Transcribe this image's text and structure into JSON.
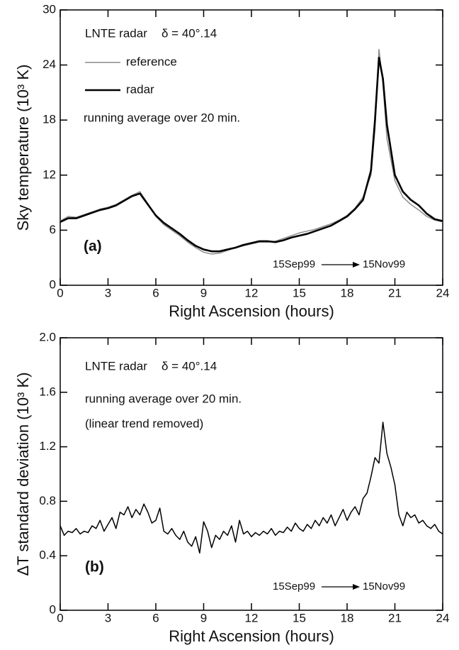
{
  "chart_data": [
    {
      "type": "line",
      "xlabel": "Right Ascension (hours)",
      "ylabel": "Sky temperature (10³ K)",
      "xlim": [
        0,
        24
      ],
      "xticks": [
        0,
        3,
        6,
        9,
        12,
        15,
        18,
        21,
        24
      ],
      "ylim": [
        0,
        30
      ],
      "yticks": [
        0,
        6,
        12,
        18,
        24,
        30
      ],
      "annotations": {
        "station": "LNTE radar",
        "declination": "δ = 40°.14",
        "note": "running average over 20 min.",
        "panel": "(a)",
        "start": "15Sep99",
        "end": "15Nov99"
      },
      "x": [
        0,
        0.5,
        1,
        1.5,
        2,
        2.5,
        3,
        3.5,
        4,
        4.5,
        5,
        5.5,
        6,
        6.5,
        7,
        7.5,
        8,
        8.5,
        9,
        9.5,
        10,
        10.5,
        11,
        11.5,
        12,
        12.5,
        13,
        13.5,
        14,
        14.5,
        15,
        15.5,
        16,
        16.5,
        17,
        17.5,
        18,
        18.5,
        19,
        19.5,
        19.75,
        20,
        20.25,
        20.5,
        21,
        21.5,
        22,
        22.5,
        23,
        23.5,
        24
      ],
      "series": [
        {
          "name": "reference",
          "color": "#8c8c8c",
          "width": 1.5,
          "values": [
            7.0,
            7.5,
            7.4,
            7.7,
            8.0,
            8.3,
            8.5,
            8.8,
            9.3,
            9.8,
            10.2,
            8.9,
            7.5,
            6.6,
            6.0,
            5.4,
            4.7,
            4.1,
            3.6,
            3.4,
            3.5,
            3.8,
            4.1,
            4.3,
            4.5,
            4.7,
            4.7,
            4.8,
            5.1,
            5.4,
            5.7,
            5.9,
            6.1,
            6.4,
            6.7,
            7.1,
            7.6,
            8.4,
            9.6,
            12.0,
            17.0,
            25.7,
            22.0,
            16.0,
            11.4,
            9.6,
            8.8,
            8.2,
            7.5,
            7.1,
            6.9
          ]
        },
        {
          "name": "radar",
          "color": "#000000",
          "width": 2.6,
          "values": [
            6.9,
            7.3,
            7.3,
            7.6,
            7.9,
            8.2,
            8.4,
            8.7,
            9.2,
            9.7,
            10.0,
            8.8,
            7.6,
            6.8,
            6.2,
            5.6,
            4.9,
            4.3,
            3.9,
            3.7,
            3.7,
            3.9,
            4.1,
            4.4,
            4.6,
            4.8,
            4.8,
            4.7,
            4.9,
            5.2,
            5.4,
            5.6,
            5.9,
            6.2,
            6.5,
            7.0,
            7.5,
            8.3,
            9.3,
            12.5,
            18.0,
            24.8,
            22.5,
            17.5,
            12.0,
            10.2,
            9.3,
            8.7,
            7.8,
            7.2,
            7.0
          ]
        }
      ]
    },
    {
      "type": "line",
      "xlabel": "Right Ascension (hours)",
      "ylabel": "ΔT  standard deviation (10³ K)",
      "xlim": [
        0,
        24
      ],
      "xticks": [
        0,
        3,
        6,
        9,
        12,
        15,
        18,
        21,
        24
      ],
      "ylim": [
        0,
        2
      ],
      "yticks": [
        0,
        0.4,
        0.8,
        1.2,
        1.6,
        {
          "value": 2,
          "label": "2.0"
        }
      ],
      "annotations": {
        "station": "LNTE radar",
        "declination": "δ = 40°.14",
        "note": "running average over 20 min.",
        "note2": "(linear trend removed)",
        "panel": "(b)",
        "start": "15Sep99",
        "end": "15Nov99"
      },
      "x": [
        0,
        0.25,
        0.5,
        0.75,
        1,
        1.25,
        1.5,
        1.75,
        2,
        2.25,
        2.5,
        2.75,
        3,
        3.25,
        3.5,
        3.75,
        4,
        4.25,
        4.5,
        4.75,
        5,
        5.25,
        5.5,
        5.75,
        6,
        6.25,
        6.5,
        6.75,
        7,
        7.25,
        7.5,
        7.75,
        8,
        8.25,
        8.5,
        8.75,
        9,
        9.25,
        9.5,
        9.75,
        10,
        10.25,
        10.5,
        10.75,
        11,
        11.25,
        11.5,
        11.75,
        12,
        12.25,
        12.5,
        12.75,
        13,
        13.25,
        13.5,
        13.75,
        14,
        14.25,
        14.5,
        14.75,
        15,
        15.25,
        15.5,
        15.75,
        16,
        16.25,
        16.5,
        16.75,
        17,
        17.25,
        17.5,
        17.75,
        18,
        18.25,
        18.5,
        18.75,
        19,
        19.25,
        19.5,
        19.75,
        20,
        20.25,
        20.5,
        20.75,
        21,
        21.25,
        21.5,
        21.75,
        22,
        22.25,
        22.5,
        22.75,
        23,
        23.25,
        23.5,
        23.75,
        24
      ],
      "series": [
        {
          "color": "#000000",
          "width": 1.5,
          "values": [
            0.62,
            0.55,
            0.58,
            0.57,
            0.6,
            0.56,
            0.58,
            0.57,
            0.62,
            0.6,
            0.66,
            0.58,
            0.63,
            0.68,
            0.6,
            0.72,
            0.7,
            0.76,
            0.68,
            0.74,
            0.7,
            0.78,
            0.72,
            0.64,
            0.66,
            0.75,
            0.58,
            0.56,
            0.6,
            0.55,
            0.52,
            0.58,
            0.5,
            0.47,
            0.54,
            0.42,
            0.65,
            0.58,
            0.46,
            0.55,
            0.52,
            0.58,
            0.55,
            0.62,
            0.5,
            0.66,
            0.56,
            0.58,
            0.54,
            0.57,
            0.55,
            0.58,
            0.56,
            0.6,
            0.55,
            0.58,
            0.57,
            0.61,
            0.58,
            0.64,
            0.6,
            0.58,
            0.63,
            0.6,
            0.66,
            0.62,
            0.68,
            0.64,
            0.7,
            0.62,
            0.68,
            0.74,
            0.66,
            0.72,
            0.76,
            0.7,
            0.82,
            0.86,
            0.98,
            1.12,
            1.08,
            1.38,
            1.15,
            1.05,
            0.92,
            0.7,
            0.62,
            0.72,
            0.68,
            0.7,
            0.64,
            0.66,
            0.62,
            0.6,
            0.63,
            0.58,
            0.56
          ]
        }
      ]
    }
  ]
}
